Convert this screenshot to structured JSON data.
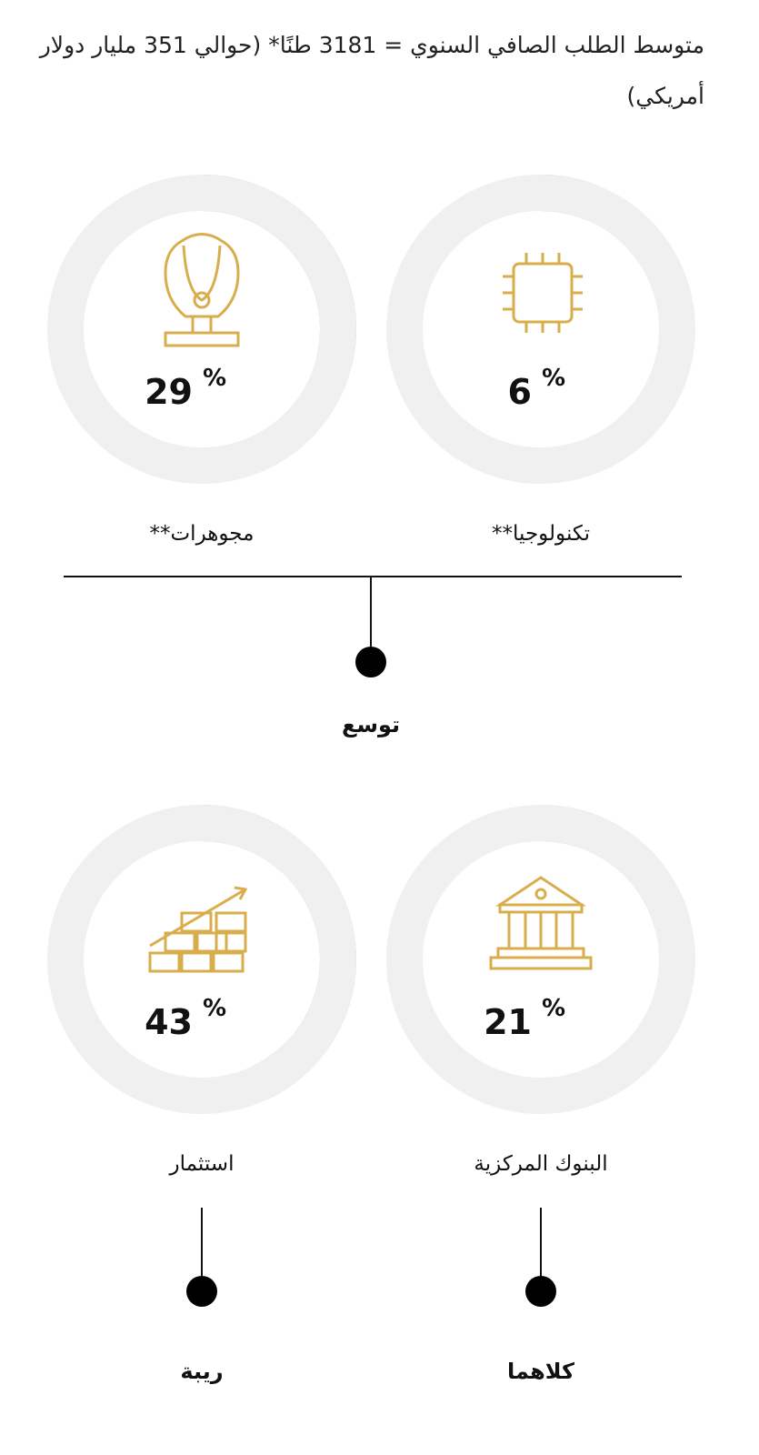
{
  "header": {
    "text": "متوسط الطلب الصافي السنوي = 3181 طنًا* (حوالي 351 مليار دولار أمريكي)"
  },
  "chart_data": [
    {
      "type": "donut",
      "title": "تكنولوجيا**",
      "values": [
        6
      ],
      "unit": "%",
      "color": "#d8ae4d",
      "track_color": "#f0f0f0",
      "max": 100
    },
    {
      "type": "donut",
      "title": "مجوهرات**",
      "values": [
        29
      ],
      "unit": "%",
      "color": "#d8ae4d",
      "track_color": "#f0f0f0",
      "max": 100
    },
    {
      "type": "donut",
      "title": "البنوك المركزية",
      "values": [
        21
      ],
      "unit": "%",
      "color": "#d8ae4d",
      "track_color": "#f0f0f0",
      "max": 100
    },
    {
      "type": "donut",
      "title": "استثمار",
      "values": [
        43
      ],
      "unit": "%",
      "color": "#d8ae4d",
      "track_color": "#f0f0f0",
      "max": 100
    }
  ],
  "tree": {
    "labels": [
      "توسع",
      "كلاهما",
      "ريبة"
    ]
  }
}
